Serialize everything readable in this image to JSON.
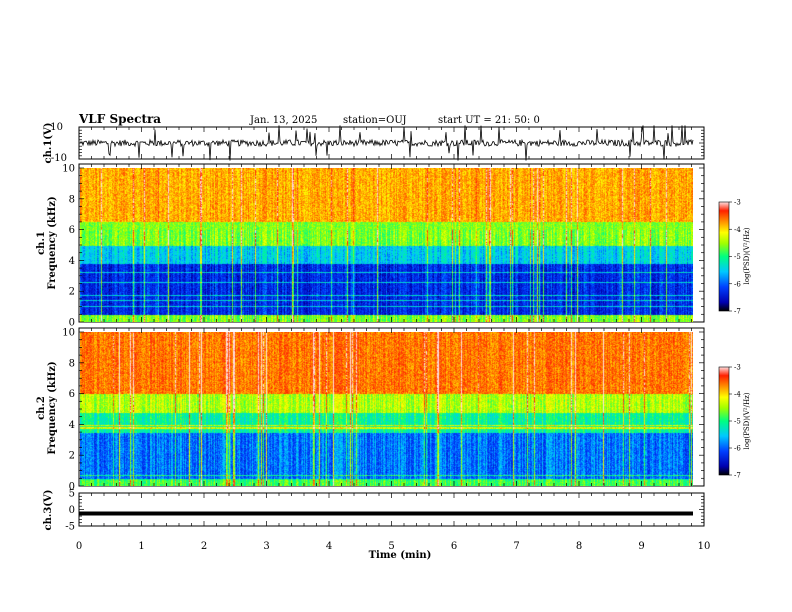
{
  "header": {
    "title": "VLF Spectra",
    "date": "Jan. 13, 2025",
    "station": "station=OUJ",
    "start_ut": "start UT =  21: 50: 0"
  },
  "chart_data": [
    {
      "type": "line",
      "name": "ch1-waveform",
      "ylabel": "ch.1(V)",
      "ylim": [
        -10,
        10
      ],
      "yticks": [
        "10",
        "-10"
      ],
      "xlim": [
        0,
        10
      ],
      "line_color": "#000000"
    },
    {
      "type": "heatmap",
      "name": "ch1-spectrogram",
      "ylabel_top": "ch.1",
      "ylabel": "Frequency (kHz)",
      "ylim": [
        0,
        10
      ],
      "yticks": [
        "0",
        "2",
        "4",
        "6",
        "8",
        "10"
      ],
      "xlim": [
        0,
        9.83
      ],
      "colorbar": {
        "label": "log(PSD)(V²/Hz)",
        "range": [
          -7,
          -3
        ],
        "ticks": [
          "-3",
          "-4",
          "-5",
          "-6",
          "-7"
        ]
      },
      "band_levels": [
        {
          "f_from": 0,
          "f_to": 0.5,
          "level": -4.6
        },
        {
          "f_from": 0.5,
          "f_to": 3.8,
          "level": -6.3
        },
        {
          "f_from": 3.8,
          "f_to": 5.0,
          "level": -5.5
        },
        {
          "f_from": 5.0,
          "f_to": 6.5,
          "level": -4.6
        },
        {
          "f_from": 6.5,
          "f_to": 10,
          "level": -3.8
        }
      ]
    },
    {
      "type": "heatmap",
      "name": "ch2-spectrogram",
      "ylabel_top": "ch.2",
      "ylabel": "Frequency (kHz)",
      "ylim": [
        0,
        10
      ],
      "yticks": [
        "0",
        "2",
        "4",
        "6",
        "8",
        "10"
      ],
      "xlim": [
        0,
        9.83
      ],
      "colorbar": {
        "label": "log(PSD)(V²/Hz)",
        "range": [
          -7,
          -3
        ],
        "ticks": [
          "-3",
          "-4",
          "-5",
          "-6",
          "-7"
        ]
      },
      "band_levels": [
        {
          "f_from": 0,
          "f_to": 0.4,
          "level": -4.8
        },
        {
          "f_from": 0.4,
          "f_to": 3.5,
          "level": -5.9
        },
        {
          "f_from": 3.5,
          "f_to": 4.8,
          "level": -5.1
        },
        {
          "f_from": 4.8,
          "f_to": 6.0,
          "level": -4.4
        },
        {
          "f_from": 6.0,
          "f_to": 10,
          "level": -3.6
        }
      ]
    },
    {
      "type": "line",
      "name": "ch3-level",
      "ylabel": "ch.3(V)",
      "ylim": [
        -5,
        5
      ],
      "yticks": [
        "5",
        "0",
        "-5"
      ],
      "xlim": [
        0,
        10
      ],
      "constant_value": -1.2,
      "line_color": "#000000"
    }
  ],
  "time_axis": {
    "label": "Time (min)",
    "range": [
      0,
      10
    ],
    "ticks": [
      "0",
      "1",
      "2",
      "3",
      "4",
      "5",
      "6",
      "7",
      "8",
      "9",
      "10"
    ]
  }
}
